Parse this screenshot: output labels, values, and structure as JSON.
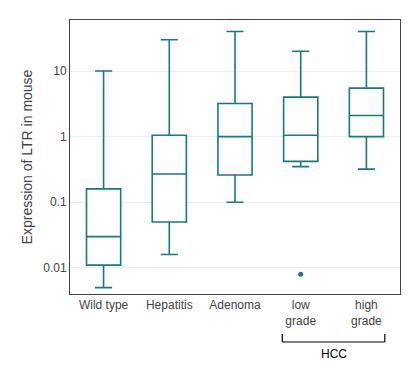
{
  "chart_data": {
    "type": "box",
    "categories": [
      "Wild type",
      "Hepatitis",
      "Adenoma",
      "low\ngrade",
      "high\ngrade"
    ],
    "ylabel": "Expression of LTR in mouse",
    "color": "#1a7a7a",
    "log": "y",
    "ylim": [
      0.004,
      60
    ],
    "yticks": [
      0.01,
      0.1,
      1,
      10
    ],
    "grid": true,
    "boxes": [
      {
        "whislo": 0.005,
        "q1": 0.011,
        "med": 0.03,
        "q3": 0.16,
        "whishi": 10.0,
        "fliers": []
      },
      {
        "whislo": 0.016,
        "q1": 0.05,
        "med": 0.27,
        "q3": 1.05,
        "whishi": 30.0,
        "fliers": []
      },
      {
        "whislo": 0.1,
        "q1": 0.26,
        "med": 1.0,
        "q3": 3.2,
        "whishi": 40.0,
        "fliers": []
      },
      {
        "whislo": 0.35,
        "q1": 0.42,
        "med": 1.05,
        "q3": 4.0,
        "whishi": 20.0,
        "fliers": [
          0.008
        ]
      },
      {
        "whislo": 0.32,
        "q1": 1.0,
        "med": 2.1,
        "q3": 5.5,
        "whishi": 40.0,
        "fliers": []
      }
    ],
    "annotations": [
      {
        "text": "HCC",
        "categories": [
          "low\ngrade",
          "high\ngrade"
        ]
      }
    ]
  }
}
